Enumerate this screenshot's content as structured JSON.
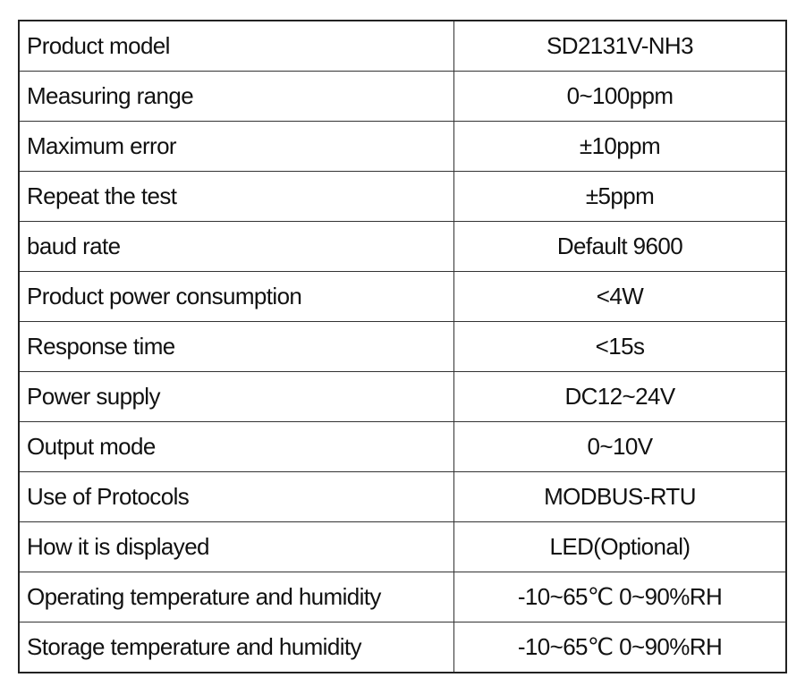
{
  "table": {
    "rows": [
      [
        "Product model",
        "SD2131V-NH3"
      ],
      [
        "Measuring range",
        "0~100ppm"
      ],
      [
        "Maximum error",
        "±10ppm"
      ],
      [
        "Repeat the test",
        "±5ppm"
      ],
      [
        "baud rate",
        "Default 9600"
      ],
      [
        "Product power consumption",
        "<4W"
      ],
      [
        "Response time",
        "<15s"
      ],
      [
        "Power supply",
        "DC12~24V"
      ],
      [
        "Output mode",
        "0~10V"
      ],
      [
        "Use of Protocols",
        "MODBUS-RTU"
      ],
      [
        "How it is displayed",
        "LED(Optional)"
      ],
      [
        "Operating temperature and humidity",
        "-10~65℃ 0~90%RH"
      ],
      [
        "Storage temperature and humidity",
        "-10~65℃ 0~90%RH"
      ]
    ]
  }
}
